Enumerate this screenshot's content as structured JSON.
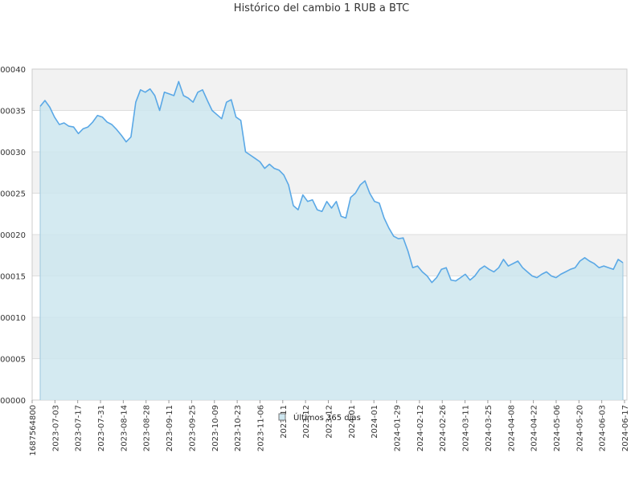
{
  "chart_data": {
    "type": "area",
    "title": "Histórico del cambio 1 RUB a BTC",
    "y_tick_labels": [
      "000000",
      "000005",
      "00010",
      "000015",
      "000020",
      "000025",
      "00030",
      "000035",
      "00040"
    ],
    "y_tick_values": [
      0.0,
      5e-06,
      1e-05,
      1.5e-05,
      2e-05,
      2.5e-05,
      3e-05,
      3.5e-05,
      4e-05
    ],
    "ylim": [
      0.0,
      4e-05
    ],
    "x_tick_labels": [
      "1687564800",
      "2023-07-03",
      "2023-07-17",
      "2023-07-31",
      "2023-08-14",
      "2023-08-28",
      "2023-09-11",
      "2023-09-25",
      "2023-10-09",
      "2023-10-23",
      "2023-11-06",
      "2023-11",
      "2023-12",
      "2023-12",
      "2024-01",
      "2024-01",
      "2024-01-29",
      "2024-02-12",
      "2024-02-26",
      "2024-03-11",
      "2024-03-25",
      "2024-04-08",
      "2024-04-22",
      "2024-05-06",
      "2024-05-20",
      "2024-06-03",
      "2024-06-17"
    ],
    "xlabel": "",
    "ylabel": "",
    "grid": true,
    "legend_position": "bottom-center",
    "series": [
      {
        "name": "Últimos 365 días",
        "color": "#5aa8e6",
        "fill": "#cde6ef",
        "x": [
          "2023-06-24",
          "2023-06-27",
          "2023-06-30",
          "2023-07-03",
          "2023-07-06",
          "2023-07-09",
          "2023-07-12",
          "2023-07-15",
          "2023-07-18",
          "2023-07-21",
          "2023-07-24",
          "2023-07-27",
          "2023-07-30",
          "2023-08-02",
          "2023-08-05",
          "2023-08-08",
          "2023-08-11",
          "2023-08-14",
          "2023-08-17",
          "2023-08-20",
          "2023-08-23",
          "2023-08-26",
          "2023-08-29",
          "2023-09-01",
          "2023-09-04",
          "2023-09-07",
          "2023-09-10",
          "2023-09-13",
          "2023-09-16",
          "2023-09-19",
          "2023-09-22",
          "2023-09-25",
          "2023-09-28",
          "2023-10-01",
          "2023-10-04",
          "2023-10-07",
          "2023-10-10",
          "2023-10-13",
          "2023-10-16",
          "2023-10-19",
          "2023-10-22",
          "2023-10-25",
          "2023-10-28",
          "2023-10-31",
          "2023-11-03",
          "2023-11-06",
          "2023-11-09",
          "2023-11-12",
          "2023-11-15",
          "2023-11-18",
          "2023-11-21",
          "2023-11-24",
          "2023-11-27",
          "2023-11-30",
          "2023-12-03",
          "2023-12-06",
          "2023-12-09",
          "2023-12-12",
          "2023-12-15",
          "2023-12-18",
          "2023-12-21",
          "2023-12-24",
          "2023-12-27",
          "2023-12-30",
          "2024-01-02",
          "2024-01-05",
          "2024-01-08",
          "2024-01-11",
          "2024-01-14",
          "2024-01-17",
          "2024-01-20",
          "2024-01-23",
          "2024-01-26",
          "2024-01-29",
          "2024-02-01",
          "2024-02-04",
          "2024-02-07",
          "2024-02-10",
          "2024-02-13",
          "2024-02-16",
          "2024-02-19",
          "2024-02-22",
          "2024-02-25",
          "2024-02-28",
          "2024-03-02",
          "2024-03-05",
          "2024-03-08",
          "2024-03-11",
          "2024-03-14",
          "2024-03-17",
          "2024-03-20",
          "2024-03-23",
          "2024-03-26",
          "2024-03-29",
          "2024-04-01",
          "2024-04-04",
          "2024-04-07",
          "2024-04-10",
          "2024-04-13",
          "2024-04-16",
          "2024-04-19",
          "2024-04-22",
          "2024-04-25",
          "2024-04-28",
          "2024-05-01",
          "2024-05-04",
          "2024-05-07",
          "2024-05-10",
          "2024-05-13",
          "2024-05-16",
          "2024-05-19",
          "2024-05-22",
          "2024-05-25",
          "2024-05-28",
          "2024-05-31",
          "2024-06-03",
          "2024-06-06",
          "2024-06-09",
          "2024-06-12",
          "2024-06-15",
          "2024-06-18",
          "2024-06-21",
          "2024-06-24"
        ],
        "values": [
          3.55e-05,
          3.62e-05,
          3.54e-05,
          3.42e-05,
          3.33e-05,
          3.35e-05,
          3.31e-05,
          3.3e-05,
          3.22e-05,
          3.28e-05,
          3.3e-05,
          3.36e-05,
          3.44e-05,
          3.42e-05,
          3.36e-05,
          3.33e-05,
          3.27e-05,
          3.2e-05,
          3.12e-05,
          3.18e-05,
          3.6e-05,
          3.75e-05,
          3.72e-05,
          3.76e-05,
          3.68e-05,
          3.5e-05,
          3.72e-05,
          3.7e-05,
          3.68e-05,
          3.85e-05,
          3.68e-05,
          3.65e-05,
          3.6e-05,
          3.72e-05,
          3.75e-05,
          3.62e-05,
          3.5e-05,
          3.45e-05,
          3.4e-05,
          3.6e-05,
          3.63e-05,
          3.42e-05,
          3.38e-05,
          3e-05,
          2.96e-05,
          2.92e-05,
          2.88e-05,
          2.8e-05,
          2.85e-05,
          2.8e-05,
          2.78e-05,
          2.72e-05,
          2.6e-05,
          2.35e-05,
          2.3e-05,
          2.48e-05,
          2.4e-05,
          2.42e-05,
          2.3e-05,
          2.28e-05,
          2.4e-05,
          2.32e-05,
          2.4e-05,
          2.22e-05,
          2.2e-05,
          2.45e-05,
          2.5e-05,
          2.6e-05,
          2.65e-05,
          2.5e-05,
          2.4e-05,
          2.38e-05,
          2.2e-05,
          2.08e-05,
          1.98e-05,
          1.95e-05,
          1.96e-05,
          1.8e-05,
          1.6e-05,
          1.62e-05,
          1.55e-05,
          1.5e-05,
          1.42e-05,
          1.48e-05,
          1.58e-05,
          1.6e-05,
          1.45e-05,
          1.44e-05,
          1.48e-05,
          1.52e-05,
          1.45e-05,
          1.5e-05,
          1.58e-05,
          1.62e-05,
          1.58e-05,
          1.55e-05,
          1.6e-05,
          1.7e-05,
          1.62e-05,
          1.65e-05,
          1.68e-05,
          1.6e-05,
          1.55e-05,
          1.5e-05,
          1.48e-05,
          1.52e-05,
          1.55e-05,
          1.5e-05,
          1.48e-05,
          1.52e-05,
          1.55e-05,
          1.58e-05,
          1.6e-05,
          1.68e-05,
          1.72e-05,
          1.68e-05,
          1.65e-05,
          1.6e-05,
          1.62e-05,
          1.6e-05,
          1.58e-05,
          1.7e-05,
          1.66e-05
        ]
      }
    ]
  }
}
